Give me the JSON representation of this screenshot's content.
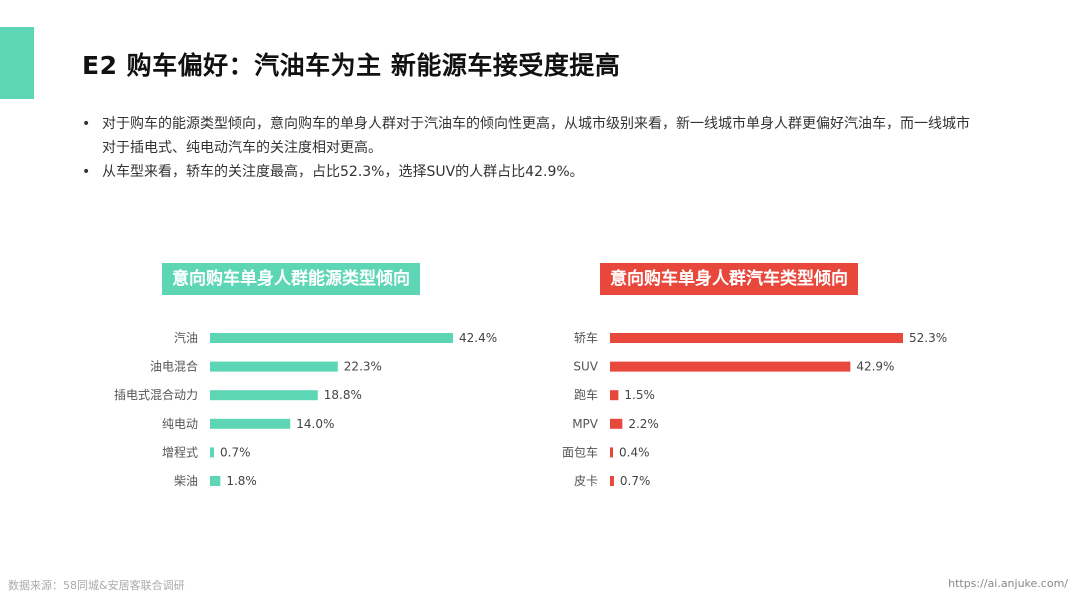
{
  "header": {
    "title": "E2 购车偏好：汽油车为主 新能源车接受度提高"
  },
  "bullets": [
    "对于购车的能源类型倾向，意向购车的单身人群对于汽油车的倾向性更高，从城市级别来看，新一线城市单身人群更偏好汽油车，而一线城市对于插电式、纯电动汽车的关注度相对更高。",
    "从车型来看，轿车的关注度最高，占比52.3%，选择SUV的人群占比42.9%。"
  ],
  "bullet_symbol": "•",
  "colors": {
    "accent": "#5dd6b5",
    "energy_bar": "#5dd6b5",
    "type_bar": "#e8473b"
  },
  "chart_data": [
    {
      "type": "bar",
      "orientation": "horizontal",
      "title": "意向购车单身人群能源类型倾向",
      "categories": [
        "汽油",
        "油电混合",
        "插电式混合动力",
        "纯电动",
        "增程式",
        "柴油"
      ],
      "values": [
        42.4,
        22.3,
        18.8,
        14.0,
        0.7,
        1.8
      ],
      "value_labels": [
        "42.4%",
        "22.3%",
        "18.8%",
        "14.0%",
        "0.7%",
        "1.8%"
      ],
      "unit": "%",
      "color": "#5dd6b5"
    },
    {
      "type": "bar",
      "orientation": "horizontal",
      "title": "意向购车单身人群汽车类型倾向",
      "categories": [
        "轿车",
        "SUV",
        "跑车",
        "MPV",
        "面包车",
        "皮卡"
      ],
      "values": [
        52.3,
        42.9,
        1.5,
        2.2,
        0.4,
        0.7
      ],
      "value_labels": [
        "52.3%",
        "42.9%",
        "1.5%",
        "2.2%",
        "0.4%",
        "0.7%"
      ],
      "unit": "%",
      "color": "#e8473b"
    }
  ],
  "footer": {
    "source": "数据来源：58同城&安居客联合调研",
    "url": "https://ai.anjuke.com/"
  }
}
